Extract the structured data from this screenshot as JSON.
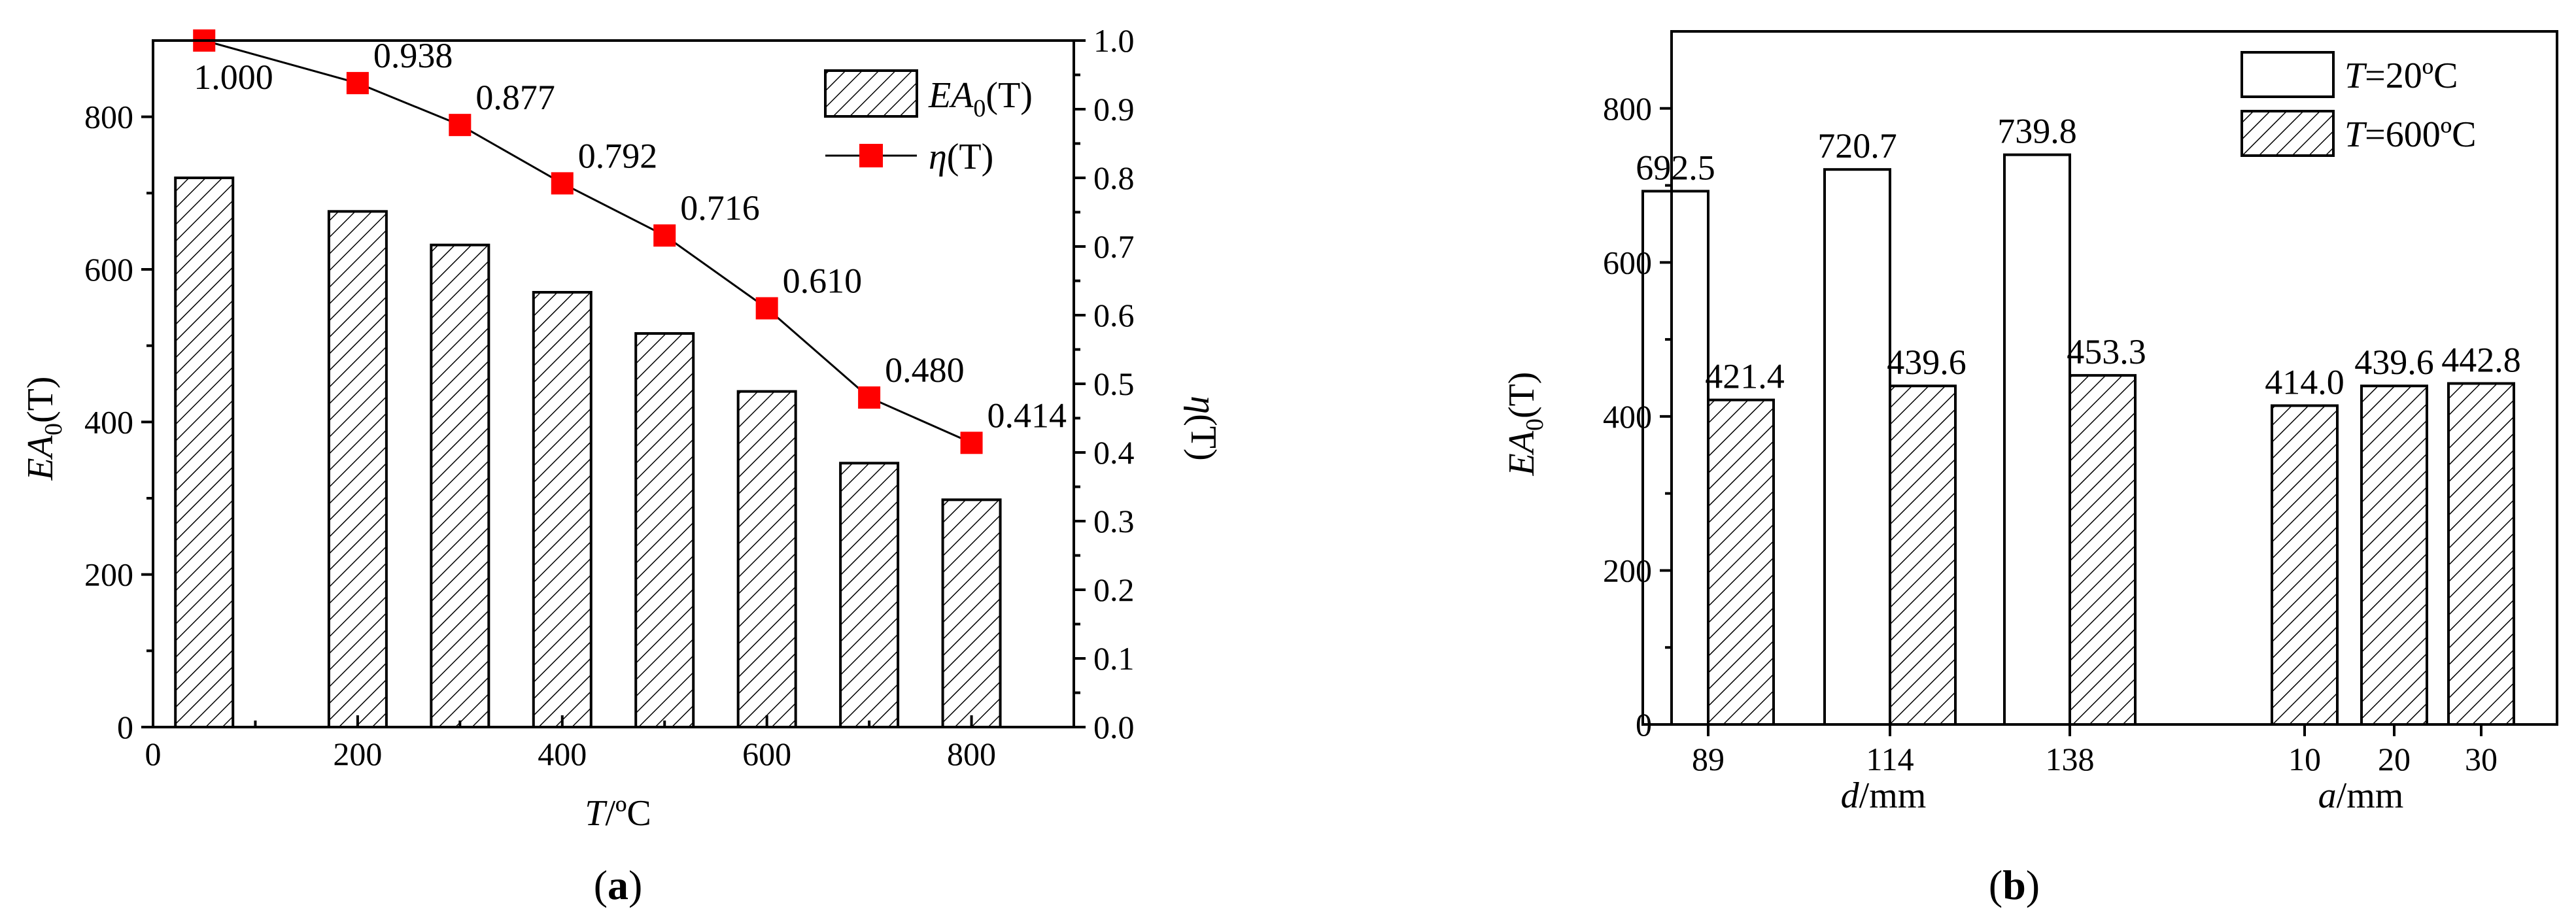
{
  "panel_labels": {
    "a": "a",
    "b": "b"
  },
  "chart_data": [
    {
      "id": "a",
      "type": "bar+line",
      "xlabel": {
        "italic": "T",
        "rest": "/ºC"
      },
      "ylabel_left": {
        "pre": "EA",
        "sub": "0",
        "post": "(T)"
      },
      "ylabel_right": {
        "italic": "η",
        "post": "(T)"
      },
      "xlim": [
        0,
        900
      ],
      "ylim_left": [
        0,
        900
      ],
      "ylim_right": [
        0,
        1.0
      ],
      "x_ticks": [
        "0",
        "200",
        "400",
        "600",
        "800"
      ],
      "y_left_ticks": [
        "0",
        "200",
        "400",
        "600",
        "800"
      ],
      "y_right_ticks": [
        "0.0",
        "0.1",
        "0.2",
        "0.3",
        "0.4",
        "0.5",
        "0.6",
        "0.7",
        "0.8",
        "0.9",
        "1.0"
      ],
      "x": [
        50,
        200,
        300,
        400,
        500,
        600,
        700,
        800
      ],
      "bar_values": [
        720,
        676,
        632,
        570,
        516,
        440,
        346,
        298
      ],
      "eta_values": [
        1.0,
        0.938,
        0.877,
        0.792,
        0.716,
        0.61,
        0.48,
        0.414
      ],
      "eta_labels": [
        "1.000",
        "0.938",
        "0.877",
        "0.792",
        "0.716",
        "0.610",
        "0.480",
        "0.414"
      ],
      "legend": [
        {
          "pre": "EA",
          "sub": "0",
          "post": "(T)",
          "style": "hatched"
        },
        {
          "pre": "η",
          "post": "(T)",
          "style": "red-square-line"
        }
      ],
      "legend_position": "top-right",
      "grid": false
    },
    {
      "id": "b",
      "type": "bar",
      "ylabel": {
        "pre": "EA",
        "sub": "0",
        "post": "(T)"
      },
      "ylim": [
        0,
        900
      ],
      "y_ticks": [
        "0",
        "200",
        "400",
        "600",
        "800"
      ],
      "groups_d": {
        "axis_label": {
          "italic": "d",
          "rest": "/mm"
        },
        "categories": [
          "89",
          "114",
          "138"
        ],
        "series": [
          {
            "name": "T=20ºC",
            "values": [
              692.5,
              720.7,
              739.8
            ],
            "labels": [
              "692.5",
              "720.7",
              "739.8"
            ]
          },
          {
            "name": "T=600ºC",
            "values": [
              421.4,
              439.6,
              453.3
            ],
            "labels": [
              "421.4",
              "439.6",
              "453.3"
            ]
          }
        ]
      },
      "groups_a": {
        "axis_label": {
          "italic": "a",
          "rest": "/mm"
        },
        "categories": [
          "10",
          "20",
          "30"
        ],
        "values": [
          414.0,
          439.6,
          442.8
        ],
        "labels": [
          "414.0",
          "439.6",
          "442.8"
        ]
      },
      "legend": [
        {
          "italic": "T",
          "rest": "=20ºC",
          "style": "open"
        },
        {
          "italic": "T",
          "rest": "=600ºC",
          "style": "hatched"
        }
      ],
      "legend_position": "top-right",
      "grid": false
    }
  ]
}
